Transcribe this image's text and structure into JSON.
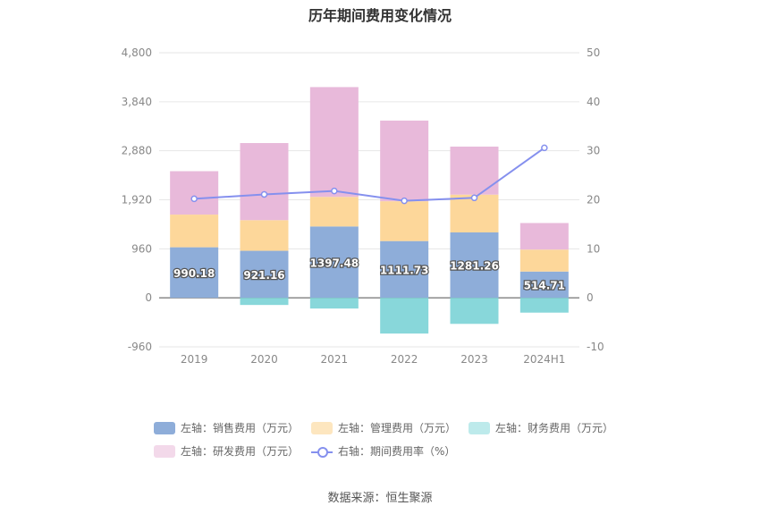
{
  "chart_data": {
    "type": "bar",
    "title": "历年期间费用变化情况",
    "categories": [
      "2019",
      "2020",
      "2021",
      "2022",
      "2023",
      "2024H1"
    ],
    "left_axis": {
      "ticks": [
        "4,800",
        "3,840",
        "2,880",
        "1,920",
        "960",
        "0",
        "-960"
      ],
      "min": -960,
      "max": 4800
    },
    "right_axis": {
      "ticks": [
        "50",
        "40",
        "30",
        "20",
        "10",
        "0",
        "-10"
      ],
      "min": -10,
      "max": 50
    },
    "series": [
      {
        "name": "左轴：销售费用（万元）",
        "color": "#8eadd9",
        "values": [
          990.18,
          921.16,
          1397.48,
          1111.73,
          1281.26,
          514.71
        ],
        "labels": [
          "990.18",
          "921.16",
          "1397.48",
          "1111.73",
          "1281.26",
          "514.71"
        ]
      },
      {
        "name": "左轴：管理费用（万元）",
        "color": "#fdd79a",
        "values": [
          640,
          600,
          580,
          780,
          740,
          430
        ]
      },
      {
        "name": "左轴：财务费用（万元）",
        "color": "#88d7da",
        "values": [
          0,
          -140,
          -210,
          -700,
          -510,
          -290
        ]
      },
      {
        "name": "左轴：研发费用（万元）",
        "color": "#e8b9da",
        "values": [
          850,
          1510,
          2150,
          1580,
          940,
          520
        ]
      },
      {
        "name": "右轴：期间费用率（%）",
        "type": "line",
        "color": "#8590ee",
        "values": [
          20.2,
          21.1,
          21.8,
          19.8,
          20.4,
          30.6
        ]
      }
    ],
    "legend_position": "bottom",
    "grid": true
  },
  "legend": {
    "row1": [
      {
        "label": "左轴：销售费用（万元）",
        "color": "#8eadd9"
      },
      {
        "label": "左轴：管理费用（万元）",
        "color": "#fde6bf"
      },
      {
        "label": "左轴：财务费用（万元）",
        "color": "#bdeaeb"
      }
    ],
    "row2": [
      {
        "label": "左轴：研发费用（万元）",
        "color": "#f3d9ea"
      },
      {
        "label": "右轴：期间费用率（%）",
        "color": "#8590ee"
      }
    ]
  },
  "source": "数据来源：恒生聚源"
}
